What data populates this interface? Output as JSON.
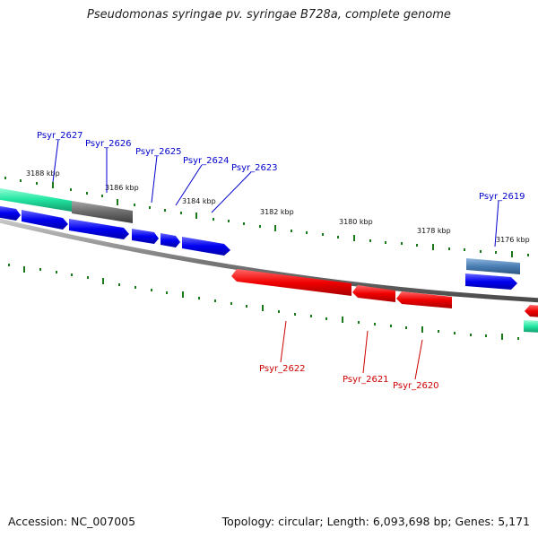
{
  "header": {
    "title": "Pseudomonas syringae pv. syringae B728a, complete genome"
  },
  "footer": {
    "accession": "Accession: NC_007005",
    "topology": "Topology: circular; Length: 6,093,698 bp; Genes: 5,171"
  },
  "ruler": {
    "labels": [
      "3188 kbp",
      "3186 kbp",
      "3184 kbp",
      "3182 kbp",
      "3180 kbp",
      "3178 kbp",
      "3176 kbp"
    ]
  },
  "genes": {
    "forward_labels": [
      "Psyr_2627",
      "Psyr_2626",
      "Psyr_2625",
      "Psyr_2624",
      "Psyr_2623",
      "Psyr_2619"
    ],
    "reverse_labels": [
      "Psyr_2622",
      "Psyr_2621",
      "Psyr_2620"
    ]
  },
  "colors": {
    "forward": "#0000ee",
    "reverse": "#ee0000",
    "teal": "#22e0a0",
    "steel": "#4a7fb5",
    "gray": "#666666",
    "backbone": "#808080",
    "tick": "#1a7a1a"
  }
}
